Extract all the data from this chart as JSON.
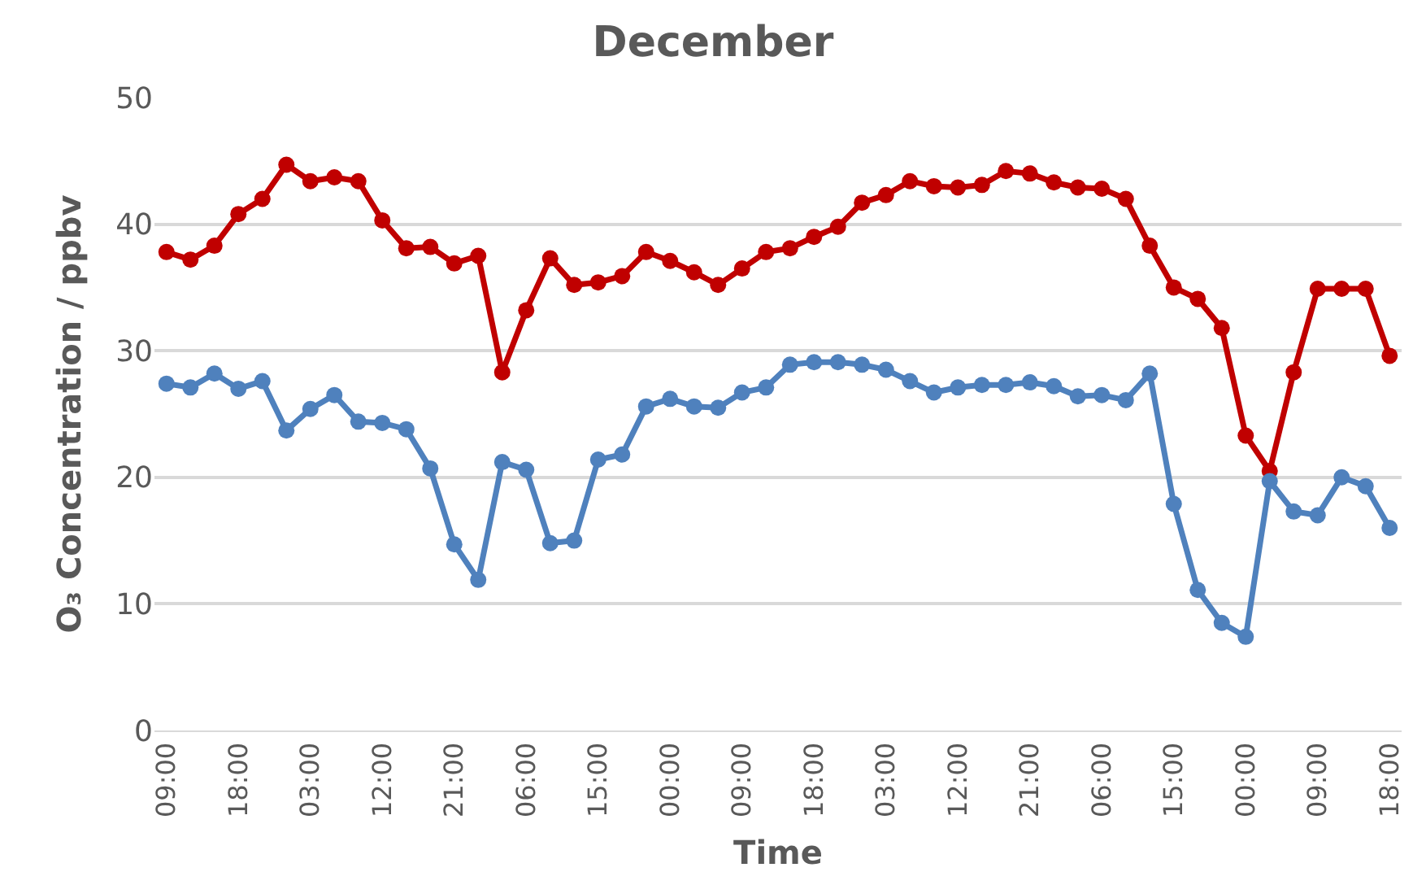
{
  "chart_data": {
    "type": "line",
    "title": "December",
    "xlabel": "Time",
    "ylabel": "O₃ Concentration / ppbv",
    "categories": [
      "09:00",
      null,
      null,
      "18:00",
      null,
      null,
      "03:00",
      null,
      null,
      "12:00",
      null,
      null,
      "21:00",
      null,
      null,
      "06:00",
      null,
      null,
      "15:00",
      null,
      null,
      "00:00",
      null,
      null,
      "09:00",
      null,
      null,
      "18:00",
      null,
      null,
      "03:00",
      null,
      null,
      "12:00",
      null,
      null,
      "21:00",
      null,
      null,
      "06:00",
      null,
      null,
      "15:00",
      null,
      null,
      "00:00",
      null,
      null,
      "09:00",
      null,
      null,
      "18:00"
    ],
    "series": [
      {
        "color": "#c00000",
        "values": [
          37.8,
          37.2,
          38.3,
          40.8,
          42.0,
          44.7,
          43.4,
          43.7,
          43.4,
          40.3,
          38.1,
          38.2,
          36.9,
          37.5,
          28.3,
          33.2,
          37.3,
          35.2,
          35.4,
          35.9,
          37.8,
          37.1,
          36.2,
          35.2,
          36.5,
          37.8,
          38.1,
          39.0,
          39.8,
          41.7,
          42.3,
          43.4,
          43.0,
          42.9,
          43.1,
          44.2,
          44.0,
          43.3,
          42.9,
          42.8,
          42.0,
          38.3,
          35.0,
          34.1,
          31.8,
          23.3,
          20.5,
          28.3,
          34.9,
          34.9,
          34.9,
          29.6
        ]
      },
      {
        "color": "#4f81bd",
        "values": [
          27.4,
          27.1,
          28.2,
          27.0,
          27.6,
          23.7,
          25.4,
          26.5,
          24.4,
          24.3,
          23.8,
          20.7,
          14.7,
          11.9,
          21.2,
          20.6,
          14.8,
          15.0,
          21.4,
          21.8,
          25.6,
          26.2,
          25.6,
          25.5,
          26.7,
          27.1,
          28.9,
          29.1,
          29.1,
          28.9,
          28.5,
          27.6,
          26.7,
          27.1,
          27.3,
          27.3,
          27.5,
          27.2,
          26.4,
          26.5,
          26.1,
          28.2,
          17.9,
          11.1,
          8.5,
          7.4,
          19.7,
          17.3,
          17.0,
          20.0,
          19.3,
          16.0
        ]
      }
    ],
    "ylim": [
      0,
      50
    ],
    "yticks": [
      0,
      10,
      20,
      30,
      40,
      50
    ],
    "grid": "y",
    "legend": false,
    "marker": "circle",
    "line_style": "solid"
  }
}
